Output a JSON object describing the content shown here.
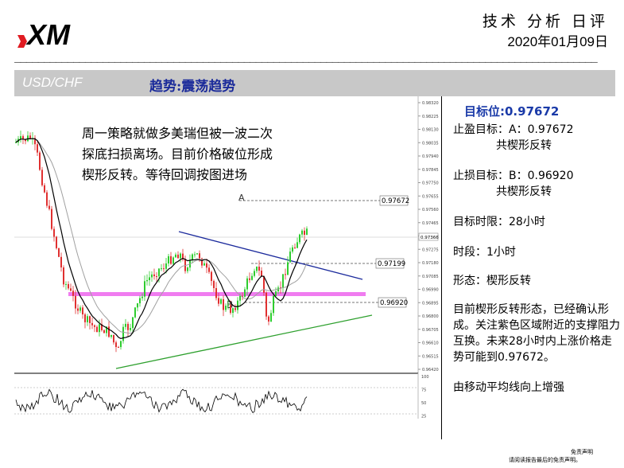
{
  "header": {
    "brand": "XM",
    "report_title": "技术 分析 日评",
    "date": "2020年01月09日",
    "rule": "___________________________________________________________________________________________________"
  },
  "band": {
    "pair": "USD/CHF",
    "trend": "趋势:震荡趋势"
  },
  "chart": {
    "note_lines": [
      "周一策略就做多美瑞但被一波二次",
      "探底扫损离场。目前价格破位形成",
      "楔形反转。等待回调按图进场"
    ],
    "label_a": "A",
    "label_b": "B",
    "level_a": "0.97672",
    "level_mid": "0.97199",
    "level_b": "0.96920",
    "price_ticks": [
      "0.98320",
      "0.98225",
      "0.98130",
      "0.98035",
      "0.97940",
      "0.97845",
      "0.97750",
      "0.97655",
      "0.97560",
      "0.97465",
      "0.97370",
      "0.97275",
      "0.97180",
      "0.97085",
      "0.96990",
      "0.96895",
      "0.96800",
      "0.96705",
      "0.96610",
      "0.96515",
      "0.96420"
    ],
    "current_price": "0.97366",
    "osc_ticks": [
      "100",
      "75",
      "50",
      "25"
    ],
    "colors": {
      "resistance_line": "#1b2a9c",
      "support_line": "#2ea02e",
      "zone": "#f07cf0",
      "bull": "#2ecc2e",
      "bear": "#e03030",
      "ma_fast": "#000000",
      "ma_slow": "#a0a0a0"
    }
  },
  "panel": {
    "target_title": "目标位:0.97672",
    "take_profit": "止盈目标：A：0.97672",
    "take_profit_sub": "共楔形反转",
    "stop_loss": "止损目标：B：0.96920",
    "stop_loss_sub": "共楔形反转",
    "time_limit": "目标时限：28小时",
    "period": "时段：1小时",
    "pattern": "形态：楔形反转",
    "analysis": "目前楔形反转形态，已经确认形成。关注紫色区域附近的支撑阻力互换。未来28小时内上涨价格走势可能到0.97672。",
    "ma_note": "由移动平均线向上增强"
  },
  "footer": {
    "line1": "免责声明",
    "line2": "请阅读报告最后的免责声明。"
  }
}
